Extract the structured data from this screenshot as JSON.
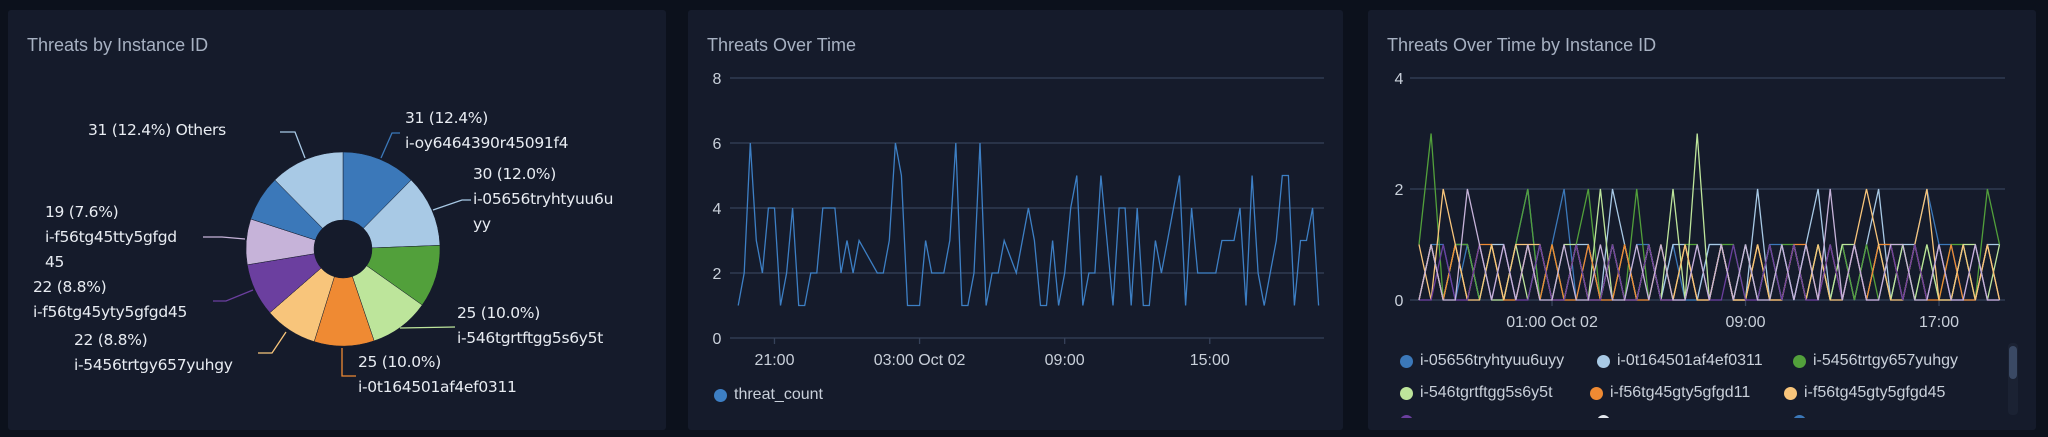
{
  "panels": {
    "pie": {
      "title": "Threats by Instance ID"
    },
    "line": {
      "title": "Threats Over Time"
    },
    "multi": {
      "title": "Threats Over Time by Instance ID"
    }
  },
  "chart_data": [
    {
      "type": "pie",
      "title": "Threats by Instance ID",
      "donut": true,
      "slices": [
        {
          "label": "i-oy6464390r45091f4",
          "value": 31,
          "value_text": "31 (12.4%)",
          "color": "#3b78b9"
        },
        {
          "label": "i-05656tryhtyuu6u",
          "label_wrap": "yy",
          "value": 30,
          "value_text": "30 (12.0%)",
          "color": "#a8c9e5"
        },
        {
          "value": 26,
          "color": "#52a03b"
        },
        {
          "label": "i-546tgrtftgg5s6y5t",
          "value": 25,
          "value_text": "25 (10.0%)",
          "color": "#bde59b"
        },
        {
          "label": "i-0t164501af4ef0311",
          "value": 25,
          "value_text": "25 (10.0%)",
          "color": "#ef8a33"
        },
        {
          "label": "i-5456trtgy657yuhgy",
          "value": 22,
          "value_text": "22 (8.8%)",
          "color": "#f8c57b"
        },
        {
          "label": "i-f56tg45yty5gfgd45",
          "value": 22,
          "value_text": "22 (8.8%)",
          "color": "#6b3f9f"
        },
        {
          "label": "i-f56tg45tty5gfgd",
          "label_wrap": "45",
          "value": 19,
          "value_text": "19 (7.6%)",
          "color": "#c6b3d9"
        },
        {
          "value": 19,
          "color": "#3b78b9"
        },
        {
          "label": "Others",
          "value": 31,
          "value_text": "31 (12.4%)",
          "color": "#a8c9e5"
        }
      ]
    },
    {
      "type": "line",
      "title": "Threats Over Time",
      "ylim": [
        0,
        8
      ],
      "yticks": [
        "0",
        "2",
        "4",
        "6",
        "8"
      ],
      "xticks": [
        {
          "t": "10-01 21:00",
          "label": "21:00"
        },
        {
          "t": "10-02 03:00",
          "label": "03:00 Oct 02"
        },
        {
          "t": "10-02 09:00",
          "label": "09:00"
        },
        {
          "t": "10-02 15:00",
          "label": "15:00"
        }
      ],
      "xlim": [
        "10-01 19:30",
        "10-02 19:30"
      ],
      "grid": true,
      "legend_placement": "bottom-left",
      "series": [
        {
          "name": "threat_count",
          "color": "#3d7fc4",
          "x": [
            "10-01 19:30",
            "10-01 19:45",
            "10-01 20:00",
            "10-01 20:15",
            "10-01 20:30",
            "10-01 20:45",
            "10-01 21:00",
            "10-01 21:15",
            "10-01 21:30",
            "10-01 21:45",
            "10-01 22:00",
            "10-01 22:15",
            "10-01 22:30",
            "10-01 22:45",
            "10-01 23:00",
            "10-01 23:15",
            "10-01 23:30",
            "10-01 23:45",
            "10-02 00:00",
            "10-02 00:15",
            "10-02 00:30",
            "10-02 00:45",
            "10-02 01:00",
            "10-02 01:15",
            "10-02 01:30",
            "10-02 01:45",
            "10-02 02:00",
            "10-02 02:15",
            "10-02 02:30",
            "10-02 02:45",
            "10-02 03:00",
            "10-02 03:15",
            "10-02 03:30",
            "10-02 03:45",
            "10-02 04:00",
            "10-02 04:15",
            "10-02 04:30",
            "10-02 04:45",
            "10-02 05:00",
            "10-02 05:15",
            "10-02 05:30",
            "10-02 05:45",
            "10-02 06:00",
            "10-02 06:15",
            "10-02 06:30",
            "10-02 06:45",
            "10-02 07:00",
            "10-02 07:15",
            "10-02 07:30",
            "10-02 07:45",
            "10-02 08:00",
            "10-02 08:15",
            "10-02 08:30",
            "10-02 08:45",
            "10-02 09:00",
            "10-02 09:15",
            "10-02 09:30",
            "10-02 09:45",
            "10-02 10:00",
            "10-02 10:15",
            "10-02 10:30",
            "10-02 10:45",
            "10-02 11:00",
            "10-02 11:15",
            "10-02 11:30",
            "10-02 11:45",
            "10-02 12:00",
            "10-02 12:15",
            "10-02 12:30",
            "10-02 12:45",
            "10-02 13:00",
            "10-02 13:15",
            "10-02 13:30",
            "10-02 13:45",
            "10-02 14:00",
            "10-02 14:15",
            "10-02 14:30",
            "10-02 14:45",
            "10-02 15:00",
            "10-02 15:15",
            "10-02 15:30",
            "10-02 15:45",
            "10-02 16:00",
            "10-02 16:15",
            "10-02 16:30",
            "10-02 16:45",
            "10-02 17:00",
            "10-02 17:15",
            "10-02 17:30",
            "10-02 17:45",
            "10-02 18:00",
            "10-02 18:15",
            "10-02 18:30",
            "10-02 18:45",
            "10-02 19:00",
            "10-02 19:15",
            "10-02 19:30"
          ],
          "values": [
            1,
            2,
            6,
            3,
            2,
            4,
            4,
            1,
            2,
            4,
            1,
            1,
            2,
            2,
            4,
            4,
            4,
            2,
            3,
            2,
            3,
            null,
            null,
            2,
            2,
            3,
            6,
            5,
            1,
            1,
            1,
            3,
            2,
            2,
            2,
            3,
            6,
            1,
            1,
            2,
            6,
            1,
            2,
            2,
            3,
            null,
            2,
            null,
            4,
            3,
            1,
            1,
            3,
            1,
            2,
            4,
            5,
            1,
            2,
            2,
            5,
            3,
            1,
            4,
            4,
            1,
            4,
            1,
            1,
            3,
            2,
            3,
            4,
            5,
            1,
            4,
            2,
            2,
            2,
            2,
            3,
            3,
            3,
            4,
            1,
            5,
            2,
            1,
            2,
            3,
            5,
            5,
            1,
            3,
            3,
            4,
            1
          ]
        }
      ]
    },
    {
      "type": "line",
      "title": "Threats Over Time by Instance ID",
      "ylim": [
        0,
        4
      ],
      "yticks": [
        "0",
        "2",
        "4"
      ],
      "xticks": [
        {
          "t": "10-02 01:00",
          "label": "01:00 Oct 02"
        },
        {
          "t": "10-02 09:00",
          "label": "09:00"
        },
        {
          "t": "10-02 17:00",
          "label": "17:00"
        }
      ],
      "xlim": [
        "10-01 19:30",
        "10-02 19:30"
      ],
      "grid": true,
      "legend_placement": "bottom",
      "x": [
        "10-01 19:30",
        "10-01 20:00",
        "10-01 20:30",
        "10-01 21:00",
        "10-01 21:30",
        "10-01 22:00",
        "10-01 22:30",
        "10-01 23:00",
        "10-01 23:30",
        "10-02 00:00",
        "10-02 00:30",
        "10-02 01:00",
        "10-02 01:30",
        "10-02 02:00",
        "10-02 02:30",
        "10-02 03:00",
        "10-02 03:30",
        "10-02 04:00",
        "10-02 04:30",
        "10-02 05:00",
        "10-02 05:30",
        "10-02 06:00",
        "10-02 06:30",
        "10-02 07:00",
        "10-02 07:30",
        "10-02 08:00",
        "10-02 08:30",
        "10-02 09:00",
        "10-02 09:30",
        "10-02 10:00",
        "10-02 10:30",
        "10-02 11:00",
        "10-02 11:30",
        "10-02 12:00",
        "10-02 12:30",
        "10-02 13:00",
        "10-02 13:30",
        "10-02 14:00",
        "10-02 14:30",
        "10-02 15:00",
        "10-02 15:30",
        "10-02 16:00",
        "10-02 16:30",
        "10-02 17:00",
        "10-02 17:30",
        "10-02 18:00",
        "10-02 18:30",
        "10-02 19:00",
        "10-02 19:30"
      ],
      "series": [
        {
          "name": "i-05656tryhtyuu6uyy",
          "color": "#3b78b9",
          "values": [
            0,
            1,
            1,
            0,
            1,
            0,
            1,
            0,
            1,
            2,
            0,
            1,
            2,
            0,
            1,
            0,
            1,
            0,
            1,
            1,
            0,
            1,
            0,
            0,
            1,
            1,
            0,
            1,
            0,
            1,
            1,
            0,
            1,
            0,
            1,
            0,
            1,
            0,
            1,
            1,
            0,
            1,
            2,
            1,
            1,
            0,
            0,
            1,
            0
          ]
        },
        {
          "name": "i-0t164501af4ef0311",
          "color": "#a8c9e5",
          "values": [
            0,
            1,
            0,
            1,
            1,
            0,
            1,
            1,
            0,
            1,
            0,
            1,
            0,
            1,
            1,
            0,
            2,
            1,
            0,
            1,
            0,
            1,
            1,
            0,
            1,
            1,
            0,
            0,
            2,
            0,
            1,
            0,
            1,
            2,
            0,
            1,
            0,
            1,
            2,
            0,
            1,
            1,
            0,
            1,
            0,
            1,
            0,
            1,
            1
          ]
        },
        {
          "name": "i-5456trtgy657yuhgy",
          "color": "#52a03b",
          "values": [
            1,
            3,
            0,
            1,
            1,
            0,
            1,
            0,
            1,
            2,
            0,
            1,
            0,
            1,
            2,
            0,
            1,
            0,
            2,
            0,
            1,
            0,
            1,
            1,
            0,
            1,
            1,
            0,
            1,
            0,
            1,
            1,
            0,
            1,
            0,
            1,
            0,
            1,
            0,
            1,
            1,
            0,
            1,
            0,
            1,
            1,
            0,
            2,
            1
          ]
        },
        {
          "name": "i-546tgrtftgg5s6y5t",
          "color": "#bde59b",
          "values": [
            0,
            1,
            0,
            1,
            0,
            1,
            0,
            0,
            1,
            0,
            1,
            0,
            1,
            1,
            0,
            2,
            0,
            1,
            0,
            1,
            0,
            2,
            0,
            3,
            0,
            1,
            0,
            1,
            0,
            1,
            0,
            1,
            0,
            1,
            0,
            1,
            1,
            0,
            1,
            0,
            1,
            0,
            1,
            0,
            0,
            1,
            1,
            0,
            1
          ]
        },
        {
          "name": "i-f56tg45gty5gfgd11",
          "color": "#ef8a33",
          "values": [
            0,
            1,
            0,
            1,
            0,
            1,
            1,
            0,
            0,
            1,
            0,
            1,
            0,
            0,
            1,
            0,
            0,
            1,
            0,
            0,
            1,
            0,
            1,
            0,
            0,
            1,
            0,
            0,
            1,
            0,
            0,
            1,
            1,
            0,
            1,
            0,
            1,
            0,
            1,
            1,
            0,
            1,
            0,
            0,
            1,
            0,
            0,
            1,
            0
          ]
        },
        {
          "name": "i-f56tg45gty5gfgd45",
          "color": "#f8c57b",
          "values": [
            1,
            0,
            2,
            1,
            0,
            0,
            1,
            0,
            1,
            1,
            1,
            0,
            0,
            1,
            0,
            0,
            1,
            0,
            0,
            1,
            0,
            0,
            1,
            0,
            0,
            1,
            0,
            0,
            1,
            0,
            0,
            1,
            0,
            1,
            0,
            0,
            1,
            2,
            1,
            0,
            0,
            1,
            2,
            0,
            0,
            1,
            0,
            1,
            0
          ]
        },
        {
          "color": "#6b3f9f",
          "values": [
            0,
            0,
            1,
            0,
            0,
            1,
            0,
            1,
            0,
            0,
            1,
            0,
            0,
            1,
            0,
            0,
            1,
            0,
            0,
            1,
            0,
            0,
            0,
            1,
            0,
            0,
            1,
            0,
            0,
            1,
            0,
            1,
            0,
            0,
            1,
            0,
            1,
            0,
            0,
            1,
            0,
            1,
            0,
            1,
            0,
            0,
            1,
            0,
            0
          ]
        },
        {
          "color": "#c6b3d9",
          "values": [
            0,
            1,
            0,
            0,
            2,
            1,
            0,
            1,
            0,
            1,
            0,
            0,
            1,
            0,
            0,
            1,
            0,
            0,
            1,
            0,
            1,
            0,
            0,
            1,
            0,
            1,
            0,
            1,
            0,
            0,
            1,
            0,
            1,
            0,
            2,
            0,
            1,
            0,
            0,
            1,
            1,
            0,
            0,
            1,
            0,
            0,
            1,
            0,
            0
          ]
        }
      ],
      "legend_partial_colors": [
        "#6b3f9f",
        "#e4e8ee",
        "#3b78b9"
      ]
    }
  ],
  "colors": {
    "background": "#0c111c",
    "panel": "#151b2b",
    "grid": "#36425a",
    "title": "#a7b1c2"
  }
}
